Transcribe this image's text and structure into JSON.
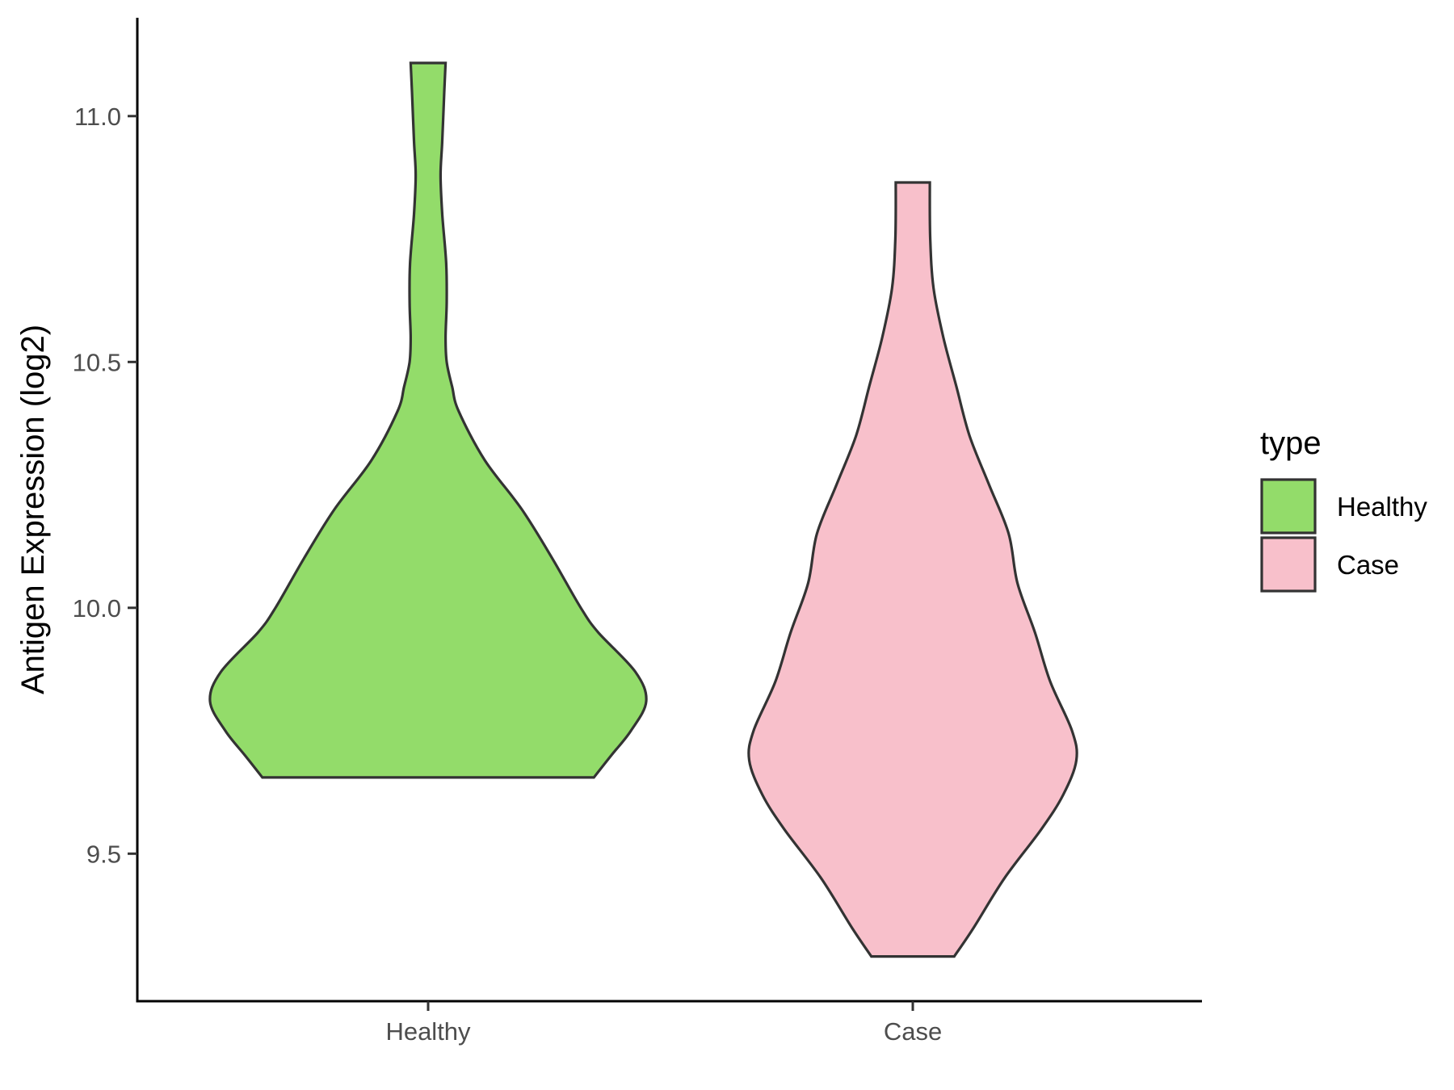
{
  "chart_data": {
    "type": "violin",
    "title": "",
    "xlabel": "",
    "ylabel": "Antigen Expression (log2)",
    "categories": [
      "Healthy",
      "Case"
    ],
    "ylim": [
      9.2,
      11.2
    ],
    "yticks": [
      9.5,
      10.0,
      10.5,
      11.0
    ],
    "ytick_labels": [
      "9.5",
      "10.0",
      "10.5",
      "11.0"
    ],
    "grid": false,
    "legend": {
      "title": "type",
      "position": "right",
      "entries": [
        {
          "label": "Healthy",
          "color": "#93DC6A"
        },
        {
          "label": "Case",
          "color": "#F8C0CB"
        }
      ]
    },
    "series": [
      {
        "name": "Healthy",
        "color": "#93DC6A",
        "min": 9.655,
        "max": 11.108,
        "density_profile": [
          [
            9.655,
            0.76
          ],
          [
            9.7,
            0.84
          ],
          [
            9.75,
            0.93
          ],
          [
            9.81,
            1.0
          ],
          [
            9.87,
            0.95
          ],
          [
            9.95,
            0.78
          ],
          [
            10.0,
            0.7
          ],
          [
            10.1,
            0.57
          ],
          [
            10.2,
            0.43
          ],
          [
            10.3,
            0.26
          ],
          [
            10.4,
            0.14
          ],
          [
            10.45,
            0.11
          ],
          [
            10.5,
            0.085
          ],
          [
            10.55,
            0.08
          ],
          [
            10.62,
            0.085
          ],
          [
            10.7,
            0.083
          ],
          [
            10.8,
            0.065
          ],
          [
            10.88,
            0.057
          ],
          [
            10.95,
            0.065
          ],
          [
            11.05,
            0.074
          ],
          [
            11.108,
            0.08
          ]
        ]
      },
      {
        "name": "Case",
        "color": "#F8C0CB",
        "min": 9.291,
        "max": 10.865,
        "density_profile": [
          [
            9.291,
            0.19
          ],
          [
            9.35,
            0.28
          ],
          [
            9.45,
            0.42
          ],
          [
            9.55,
            0.59
          ],
          [
            9.62,
            0.69
          ],
          [
            9.69,
            0.75
          ],
          [
            9.75,
            0.73
          ],
          [
            9.85,
            0.63
          ],
          [
            9.95,
            0.56
          ],
          [
            10.05,
            0.48
          ],
          [
            10.15,
            0.44
          ],
          [
            10.25,
            0.35
          ],
          [
            10.35,
            0.26
          ],
          [
            10.45,
            0.2
          ],
          [
            10.55,
            0.14
          ],
          [
            10.65,
            0.095
          ],
          [
            10.75,
            0.08
          ],
          [
            10.865,
            0.078
          ]
        ]
      }
    ]
  }
}
